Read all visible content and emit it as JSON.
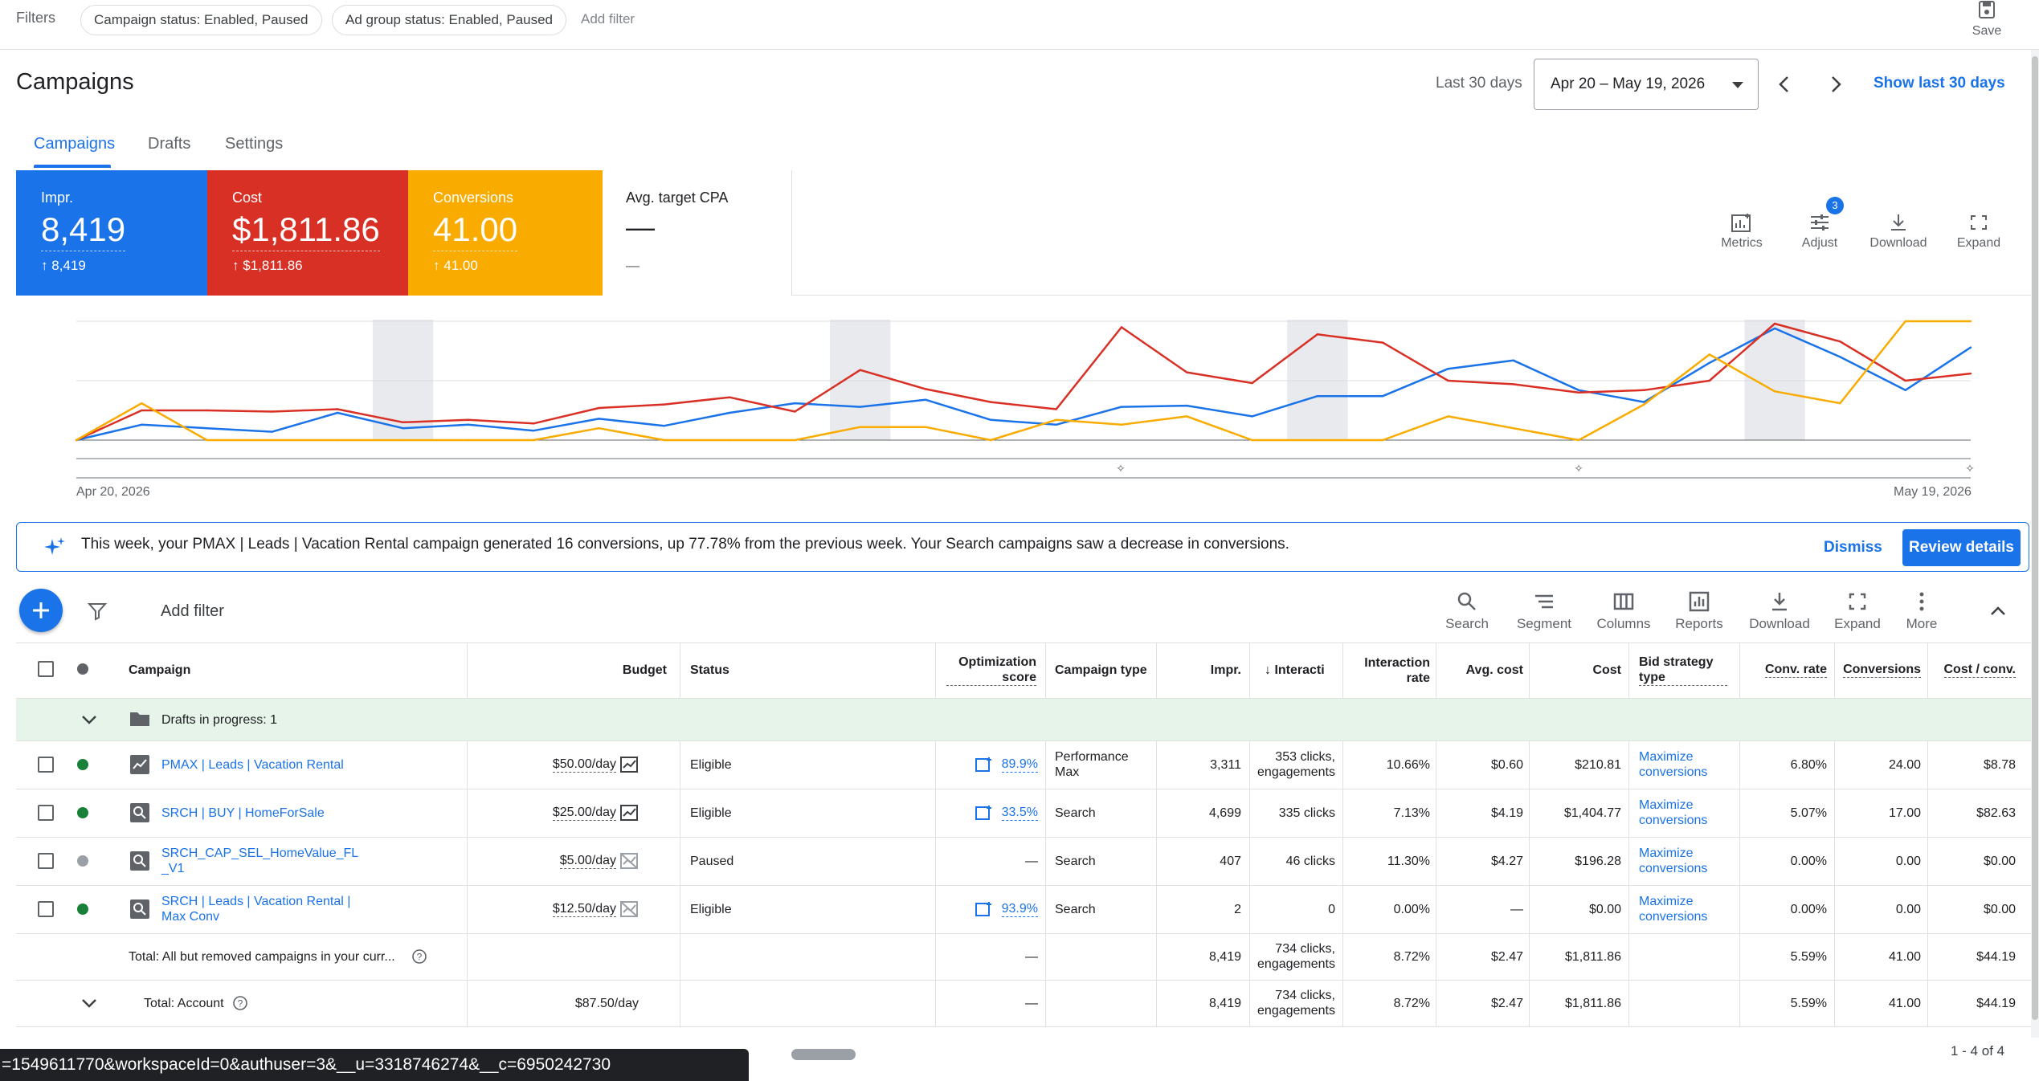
{
  "filters": {
    "label": "Filters",
    "chips": [
      "Campaign status: Enabled, Paused",
      "Ad group status: Enabled, Paused"
    ],
    "add_filter": "Add filter",
    "save_label": "Save"
  },
  "header": {
    "title": "Campaigns",
    "range_label": "Last 30 days",
    "date_range": "Apr 20 – May 19, 2026",
    "show_last": "Show last 30 days"
  },
  "tabs": [
    "Campaigns",
    "Drafts",
    "Settings"
  ],
  "scorecards": [
    {
      "label": "Impr.",
      "value": "8,419",
      "delta": "8,419",
      "color": "#1a73e8"
    },
    {
      "label": "Cost",
      "value": "$1,811.86",
      "delta": "$1,811.86",
      "color": "#d93025"
    },
    {
      "label": "Conversions",
      "value": "41.00",
      "delta": "41.00",
      "color": "#f9ab00"
    },
    {
      "label": "Avg. target CPA",
      "value": "—",
      "delta": "—",
      "color": "#ffffff"
    }
  ],
  "chart_tools": {
    "metrics": "Metrics",
    "adjust": "Adjust",
    "adjust_badge": "3",
    "download": "Download",
    "expand": "Expand"
  },
  "chart_data": {
    "type": "line",
    "x_start": "Apr 20, 2026",
    "x_end": "May 19, 2026",
    "colors": {
      "impr": "#1a73e8",
      "cost": "#d93025",
      "conversions": "#f9ab00"
    },
    "series": [
      {
        "name": "Impr.",
        "values": [
          0,
          0.13,
          0.1,
          0.07,
          0.23,
          0.1,
          0.13,
          0.08,
          0.18,
          0.12,
          0.23,
          0.31,
          0.28,
          0.34,
          0.17,
          0.13,
          0.28,
          0.29,
          0.2,
          0.37,
          0.37,
          0.6,
          0.67,
          0.42,
          0.32,
          0.65,
          0.94,
          0.7,
          0.42,
          0.78
        ]
      },
      {
        "name": "Cost",
        "values": [
          0,
          0.25,
          0.25,
          0.24,
          0.26,
          0.15,
          0.17,
          0.14,
          0.27,
          0.3,
          0.36,
          0.24,
          0.59,
          0.43,
          0.32,
          0.26,
          0.95,
          0.57,
          0.48,
          0.89,
          0.82,
          0.5,
          0.47,
          0.4,
          0.42,
          0.5,
          0.98,
          0.83,
          0.5,
          0.56
        ]
      },
      {
        "name": "Conversions",
        "values": [
          0,
          0.31,
          0,
          0,
          0,
          0,
          0,
          0,
          0.1,
          0,
          0,
          0,
          0.11,
          0.11,
          0,
          0.17,
          0.13,
          0.2,
          0,
          0,
          0,
          0.2,
          0.1,
          0,
          0.3,
          0.72,
          0.41,
          0.31,
          1.0,
          1.0
        ]
      }
    ],
    "weekend_bands": [
      5,
      12,
      19,
      26
    ]
  },
  "insight": {
    "text": "This week, your PMAX | Leads | Vacation Rental campaign generated 16 conversions, up 77.78% from the previous week. Your Search campaigns saw a decrease in conversions.",
    "dismiss": "Dismiss",
    "review": "Review details"
  },
  "table_toolbar": {
    "add_filter": "Add filter",
    "tools": [
      "Search",
      "Segment",
      "Columns",
      "Reports",
      "Download",
      "Expand",
      "More"
    ]
  },
  "table": {
    "headers": {
      "campaign": "Campaign",
      "budget": "Budget",
      "status": "Status",
      "opt_score": "Optimization score",
      "campaign_type": "Campaign type",
      "impr": "Impr.",
      "interactions": "Interacti",
      "interaction_rate": "Interaction rate",
      "avg_cost": "Avg. cost",
      "cost": "Cost",
      "bid_strategy": "Bid strategy type",
      "conv_rate": "Conv. rate",
      "conversions": "Conversions",
      "cost_conv": "Cost / conv."
    },
    "drafts_label": "Drafts in progress: 1",
    "rows": [
      {
        "name": "PMAX | Leads | Vacation Rental",
        "status_color": "#188038",
        "budget": "$50.00/day",
        "status": "Eligible",
        "opt": "89.9%",
        "type": "Performance Max",
        "impr": "3,311",
        "inter": "353 clicks, engagements",
        "irate": "10.66%",
        "avg": "$0.60",
        "cost": "$210.81",
        "bid": "Maximize conversions",
        "crate": "6.80%",
        "conv": "24.00",
        "cpc": "$8.78"
      },
      {
        "name": "SRCH | BUY | HomeForSale",
        "status_color": "#188038",
        "budget": "$25.00/day",
        "status": "Eligible",
        "opt": "33.5%",
        "type": "Search",
        "impr": "4,699",
        "inter": "335 clicks",
        "irate": "7.13%",
        "avg": "$4.19",
        "cost": "$1,404.77",
        "bid": "Maximize conversions",
        "crate": "5.07%",
        "conv": "17.00",
        "cpc": "$82.63"
      },
      {
        "name": "SRCH_CAP_SEL_HomeValue_FL _V1",
        "status_color": "#9aa0a6",
        "budget": "$5.00/day",
        "status": "Paused",
        "opt": "—",
        "type": "Search",
        "impr": "407",
        "inter": "46 clicks",
        "irate": "11.30%",
        "avg": "$4.27",
        "cost": "$196.28",
        "bid": "Maximize conversions",
        "crate": "0.00%",
        "conv": "0.00",
        "cpc": "$0.00"
      },
      {
        "name": "SRCH | Leads | Vacation Rental | Max Conv",
        "status_color": "#188038",
        "budget": "$12.50/day",
        "status": "Eligible",
        "opt": "93.9%",
        "type": "Search",
        "impr": "2",
        "inter": "0",
        "irate": "0.00%",
        "avg": "—",
        "cost": "$0.00",
        "bid": "Maximize conversions",
        "crate": "0.00%",
        "conv": "0.00",
        "cpc": "$0.00"
      }
    ],
    "totals": [
      {
        "label": "Total: All but removed campaigns in your curr...",
        "budget": "",
        "opt": "—",
        "impr": "8,419",
        "inter": "734 clicks, engagements",
        "irate": "8.72%",
        "avg": "$2.47",
        "cost": "$1,811.86",
        "crate": "5.59%",
        "conv": "41.00",
        "cpc": "$44.19"
      },
      {
        "label": "Total: Account",
        "budget": "$87.50/day",
        "opt": "—",
        "impr": "8,419",
        "inter": "734 clicks, engagements",
        "irate": "8.72%",
        "avg": "$2.47",
        "cost": "$1,811.86",
        "crate": "5.59%",
        "conv": "41.00",
        "cpc": "$44.19"
      }
    ]
  },
  "footer": {
    "url": "=1549611770&workspaceId=0&authuser=3&__u=3318746274&__c=6950242730",
    "page_count": "1 - 4 of 4"
  }
}
